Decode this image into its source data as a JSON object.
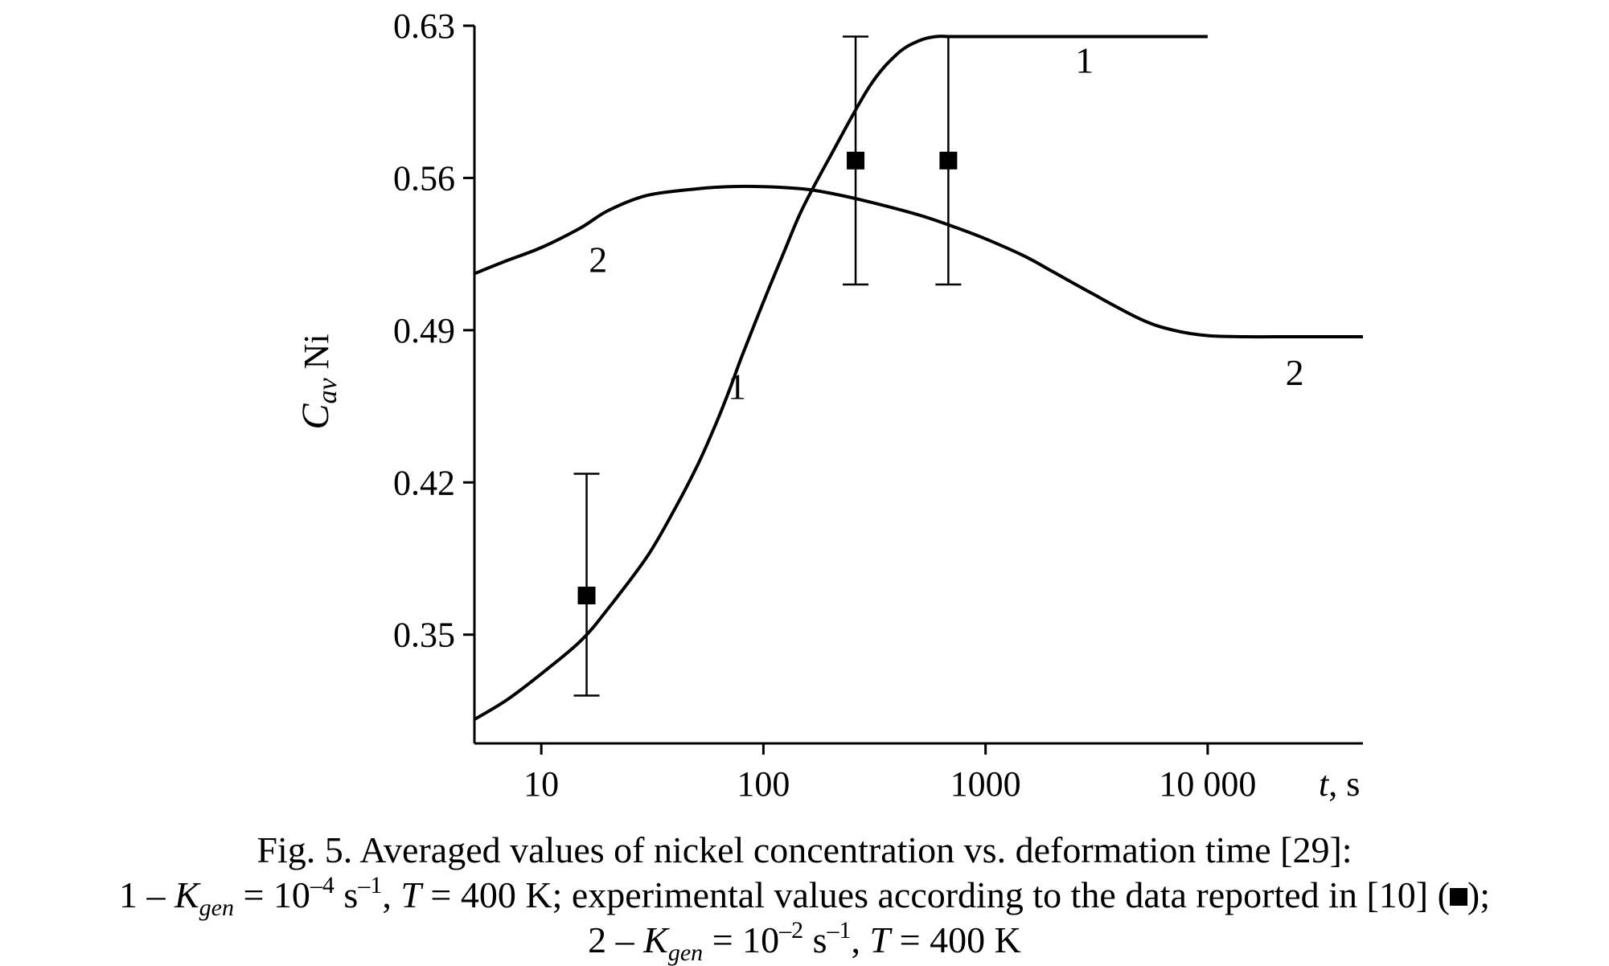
{
  "chart_data": {
    "type": "line",
    "title": "",
    "xlabel": "t, s",
    "ylabel": "C_av Ni",
    "x_scale": "log",
    "xlim": [
      5,
      50000
    ],
    "ylim": [
      0.3,
      0.63
    ],
    "x_ticks": [
      10,
      100,
      1000,
      10000
    ],
    "x_tick_labels": [
      "10",
      "100",
      "1000",
      "10 000"
    ],
    "y_ticks": [
      0.35,
      0.42,
      0.49,
      0.56,
      0.63
    ],
    "y_tick_labels": [
      "0.35",
      "0.42",
      "0.49",
      "0.56",
      "0.63"
    ],
    "grid": false,
    "series": [
      {
        "name": "1",
        "x": [
          5,
          7,
          10,
          15,
          20,
          30,
          40,
          50,
          60,
          70,
          80,
          100,
          125,
          150,
          200,
          300,
          400,
          500,
          600,
          700,
          1000,
          2000,
          5000,
          10000
        ],
        "y": [
          0.311,
          0.32,
          0.332,
          0.347,
          0.362,
          0.386,
          0.408,
          0.427,
          0.445,
          0.462,
          0.478,
          0.503,
          0.527,
          0.546,
          0.57,
          0.602,
          0.617,
          0.623,
          0.625,
          0.625,
          0.625,
          0.625,
          0.625,
          0.625
        ],
        "label_positions_x": [
          70,
          5000
        ]
      },
      {
        "name": "2",
        "x": [
          5,
          7,
          10,
          15,
          20,
          30,
          50,
          70,
          100,
          150,
          200,
          300,
          500,
          700,
          1000,
          1500,
          2000,
          3000,
          5000,
          7000,
          10000,
          15000,
          20000,
          50000
        ],
        "y": [
          0.516,
          0.522,
          0.528,
          0.537,
          0.545,
          0.552,
          0.555,
          0.556,
          0.556,
          0.555,
          0.553,
          0.549,
          0.543,
          0.538,
          0.532,
          0.524,
          0.517,
          0.507,
          0.495,
          0.49,
          0.4875,
          0.487,
          0.487,
          0.487
        ],
        "label_positions_x": [
          15,
          20000
        ]
      }
    ],
    "experimental": {
      "marker": "filled-square",
      "points": [
        {
          "x": 16,
          "y": 0.368,
          "err_low": 0.322,
          "err_high": 0.424
        },
        {
          "x": 260,
          "y": 0.568,
          "err_low": 0.511,
          "err_high": 0.625
        },
        {
          "x": 680,
          "y": 0.568,
          "err_low": 0.511,
          "err_high": 0.625
        }
      ]
    }
  },
  "caption": {
    "line1": "Fig. 5. Averaged values of nickel concentration vs. deformation time [29]:",
    "line2_a": "1 – ",
    "line2_k": "K",
    "line2_sub": "gen",
    "line2_b": " = 10",
    "line2_sup1": "–4",
    "line2_c": " s",
    "line2_sup2": "–1",
    "line2_d": ", ",
    "line2_t": "T",
    "line2_e": " = 400 K; experimental values according to the data reported in [10] (",
    "line2_f": ");",
    "line3_a": "2 – ",
    "line3_k": "K",
    "line3_sub": "gen",
    "line3_b": " = 10",
    "line3_sup1": "–2",
    "line3_c": " s",
    "line3_sup2": "–1",
    "line3_d": ", ",
    "line3_t": "T",
    "line3_e": " = 400 K"
  }
}
